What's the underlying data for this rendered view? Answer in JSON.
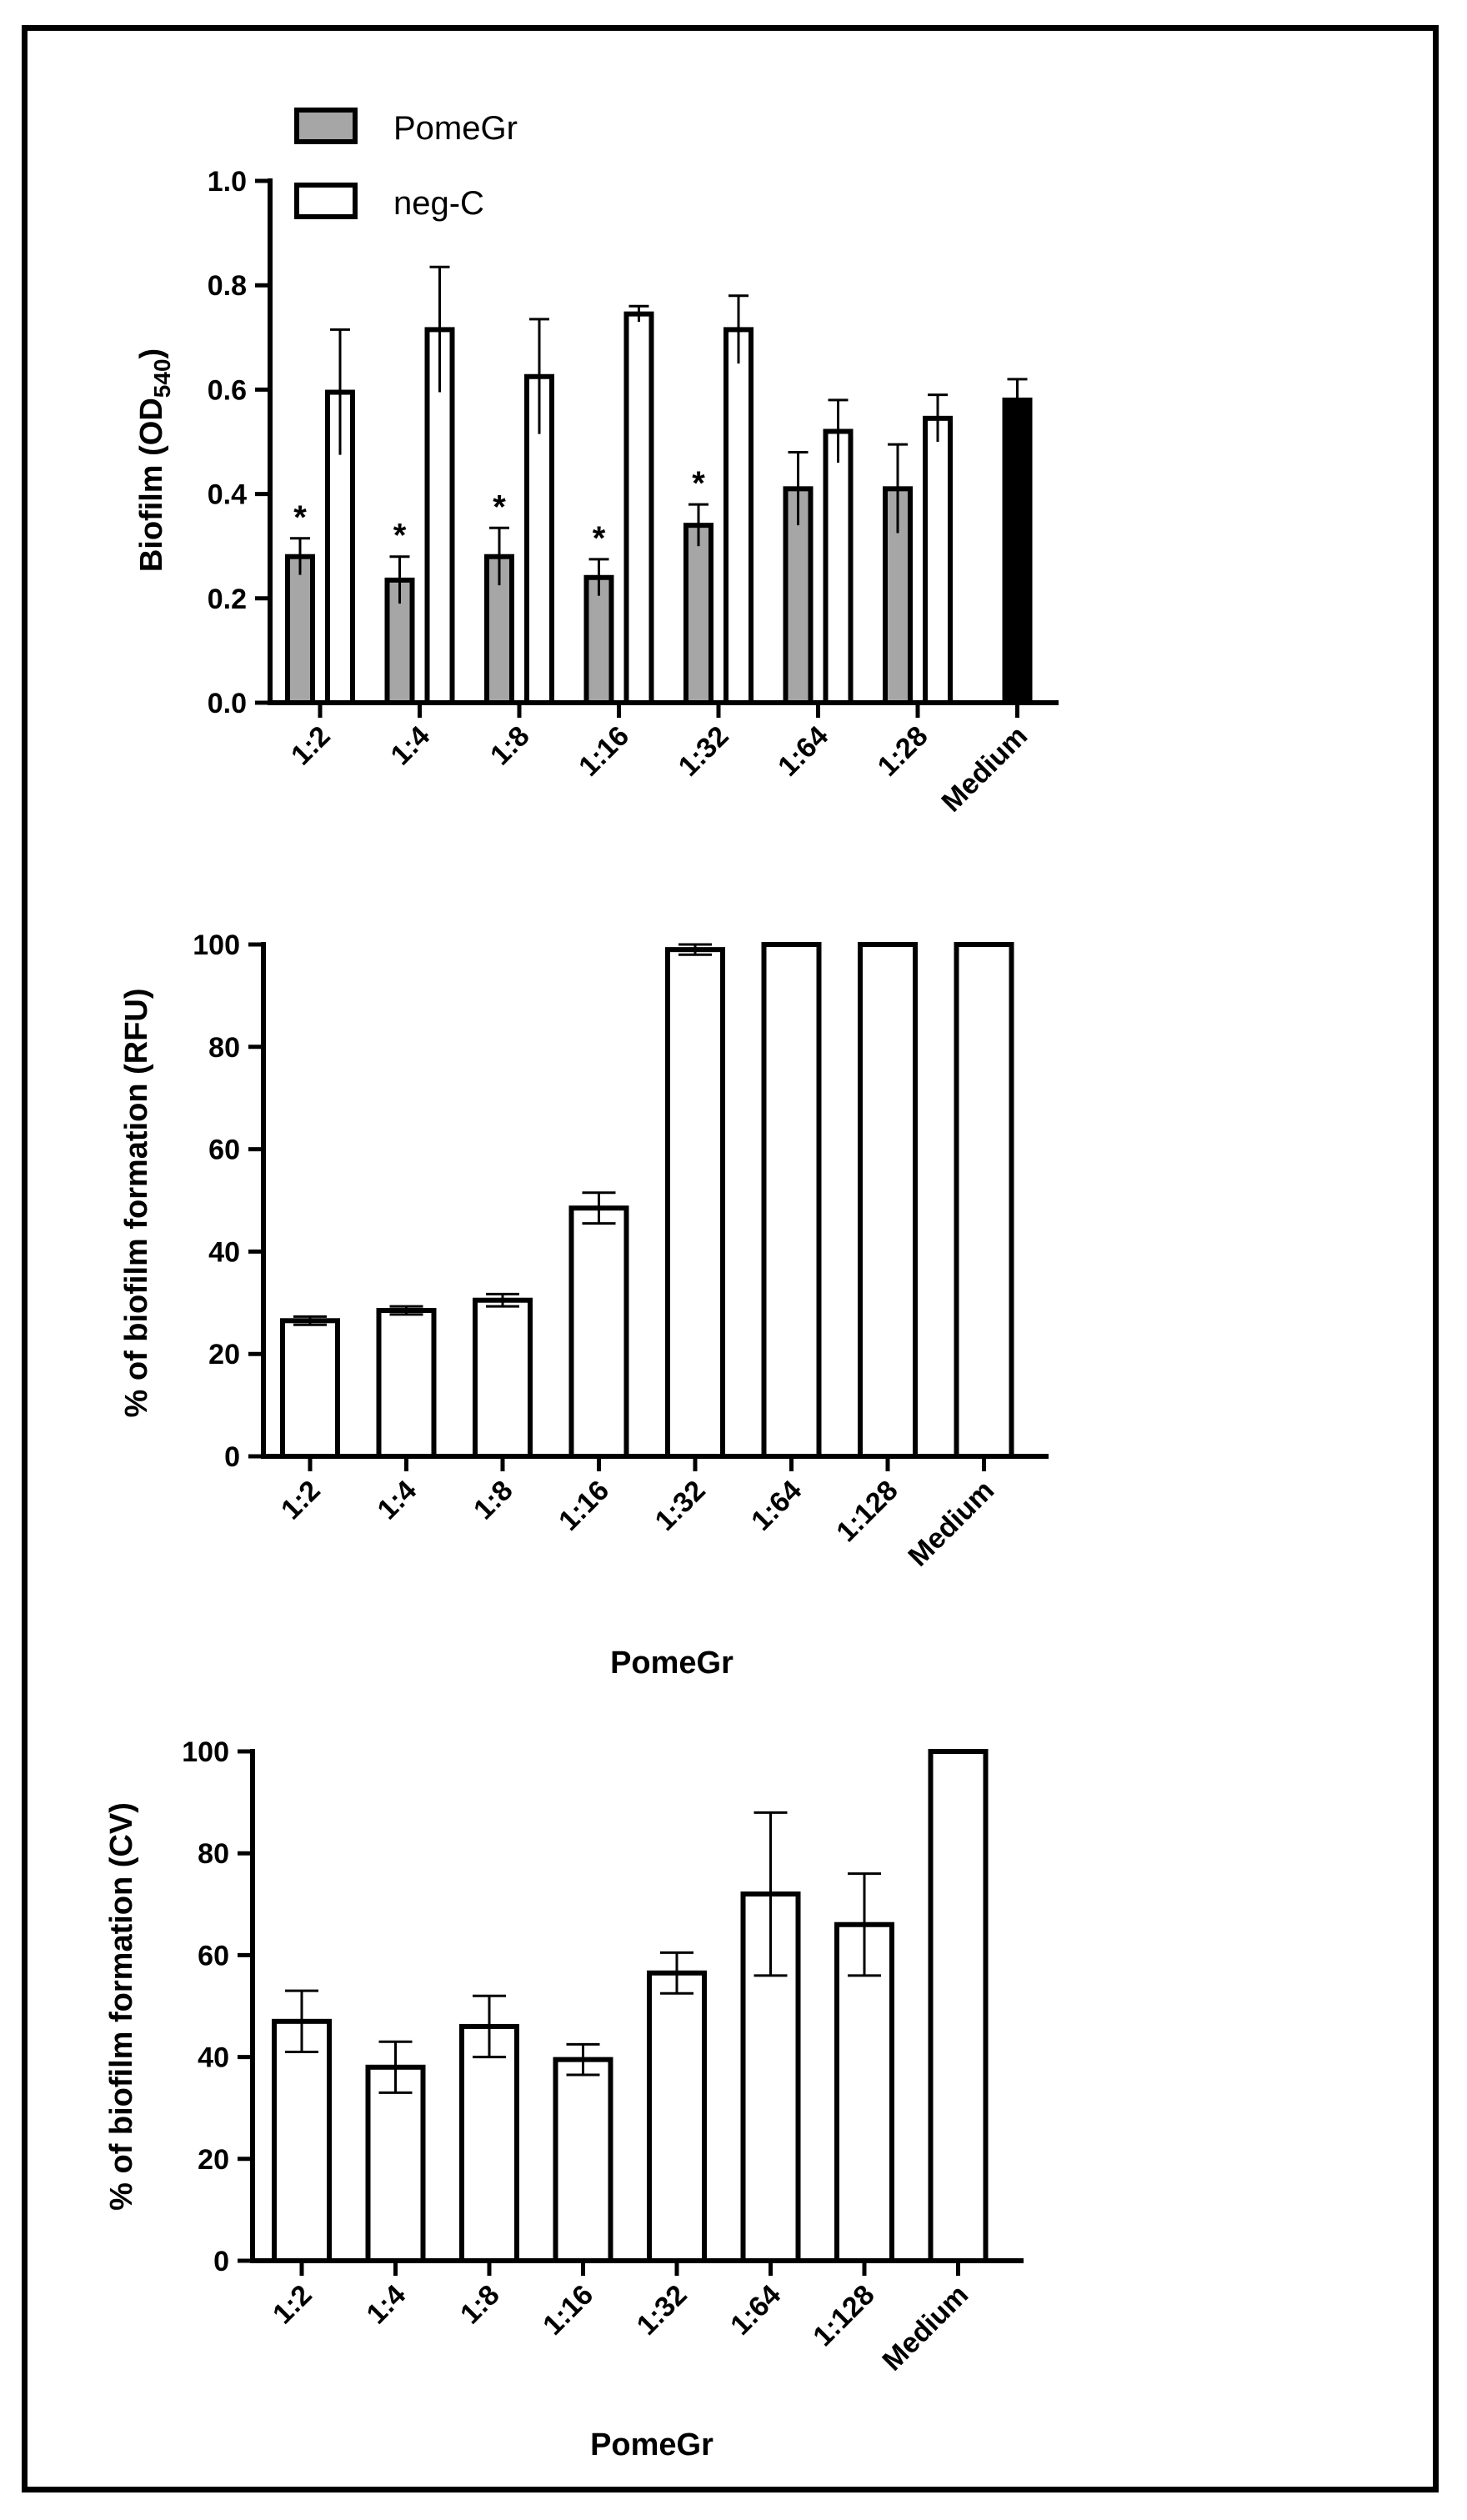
{
  "chart_data": [
    {
      "type": "bar",
      "title": "",
      "ylabel": "Biofilm (OD",
      "ylabel_subscript": "540",
      "ylabel_close": ")",
      "xlabel": "",
      "categories": [
        "1:2",
        "1:4",
        "1:8",
        "1:16",
        "1:32",
        "1:64",
        "1:28",
        "Medium"
      ],
      "ylim": [
        0,
        1.0
      ],
      "yticks": [
        "0.0",
        "0.2",
        "0.4",
        "0.6",
        "0.8",
        "1.0"
      ],
      "yticks_values": [
        0,
        0.2,
        0.4,
        0.6,
        0.8,
        1.0
      ],
      "legend": {
        "placement": "top-left",
        "entries": [
          "PomeGr",
          "neg-C"
        ]
      },
      "significance_marker": "*",
      "series": [
        {
          "name": "PomeGr",
          "color": "#a6a6a6",
          "values": [
            0.28,
            0.235,
            0.28,
            0.24,
            0.34,
            0.41,
            0.41,
            null
          ],
          "errors": [
            0.035,
            0.045,
            0.055,
            0.035,
            0.04,
            0.07,
            0.085,
            null
          ],
          "significant": [
            true,
            true,
            true,
            true,
            true,
            false,
            false,
            false
          ]
        },
        {
          "name": "neg-C",
          "color": "#ffffff",
          "values": [
            0.595,
            0.715,
            0.625,
            0.745,
            0.715,
            0.52,
            0.545,
            null
          ],
          "errors": [
            0.12,
            0.12,
            0.11,
            0.015,
            0.065,
            0.06,
            0.045,
            null
          ]
        },
        {
          "name": "Medium",
          "color": "#000000",
          "values": [
            null,
            null,
            null,
            null,
            null,
            null,
            null,
            0.58
          ],
          "errors": [
            null,
            null,
            null,
            null,
            null,
            null,
            null,
            0.04
          ]
        }
      ]
    },
    {
      "type": "bar",
      "title": "",
      "ylabel": "% of biofilm formation (RFU)",
      "xlabel": "PomeGr",
      "categories": [
        "1:2",
        "1:4",
        "1:8",
        "1:16",
        "1:32",
        "1:64",
        "1:128",
        "Medium"
      ],
      "ylim": [
        0,
        100
      ],
      "yticks": [
        "0",
        "20",
        "40",
        "60",
        "80",
        "100"
      ],
      "yticks_values": [
        0,
        20,
        40,
        60,
        80,
        100
      ],
      "series": [
        {
          "name": "PomeGr",
          "color": "#ffffff",
          "values": [
            26.5,
            28.5,
            30.5,
            48.5,
            99,
            100,
            100,
            100
          ],
          "errors": [
            0.8,
            0.8,
            1.2,
            3,
            1,
            0,
            0,
            0
          ]
        }
      ]
    },
    {
      "type": "bar",
      "title": "",
      "ylabel": "% of biofilm formation (CV)",
      "xlabel": "PomeGr",
      "categories": [
        "1:2",
        "1:4",
        "1:8",
        "1:16",
        "1:32",
        "1:64",
        "1:128",
        "Medium"
      ],
      "ylim": [
        0,
        100
      ],
      "yticks": [
        "0",
        "20",
        "40",
        "60",
        "80",
        "100"
      ],
      "yticks_values": [
        0,
        20,
        40,
        60,
        80,
        100
      ],
      "series": [
        {
          "name": "PomeGr",
          "color": "#ffffff",
          "values": [
            47,
            38,
            46,
            39.5,
            56.5,
            72,
            66,
            100
          ],
          "errors": [
            6,
            5,
            6,
            3,
            4,
            16,
            10,
            0
          ]
        }
      ]
    }
  ]
}
